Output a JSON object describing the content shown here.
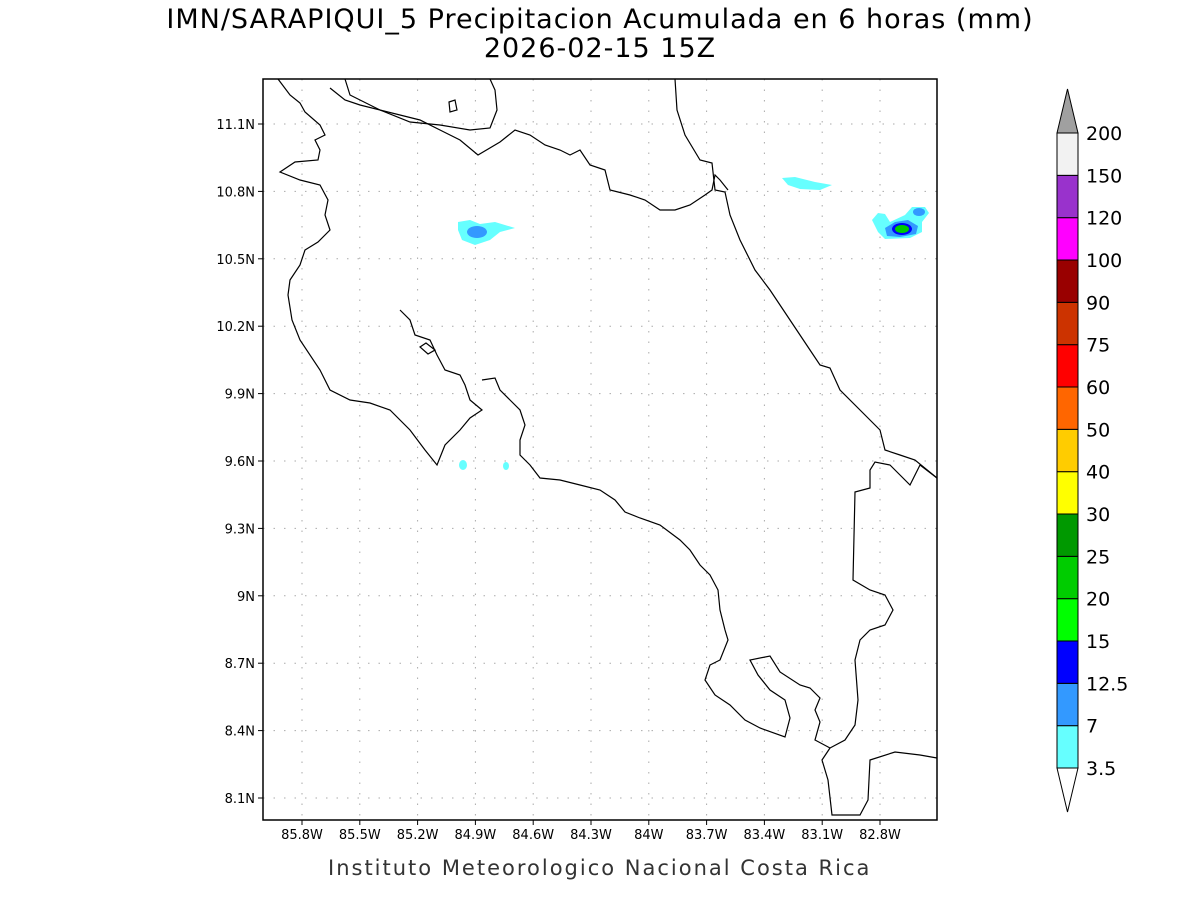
{
  "title": "IMN/SARAPIQUI_5 Precipitacion Acumulada en 6 horas (mm)",
  "subtitle": "2026-02-15 15Z",
  "credit": "Instituto Meteorologico Nacional Costa Rica",
  "map": {
    "lat_ticks": [
      "11.1N",
      "10.8N",
      "10.5N",
      "10.2N",
      "9.9N",
      "9.6N",
      "9.3N",
      "9N",
      "8.7N",
      "8.4N",
      "8.1N"
    ],
    "lat_values": [
      11.1,
      10.8,
      10.5,
      10.2,
      9.9,
      9.6,
      9.3,
      9.0,
      8.7,
      8.4,
      8.1
    ],
    "lon_ticks": [
      "85.8W",
      "85.5W",
      "85.2W",
      "84.9W",
      "84.6W",
      "84.3W",
      "84W",
      "83.7W",
      "83.4W",
      "83.1W",
      "82.8W"
    ],
    "lon_values": [
      -85.8,
      -85.5,
      -85.2,
      -84.9,
      -84.6,
      -84.3,
      -84.0,
      -83.7,
      -83.4,
      -83.1,
      -82.8
    ]
  },
  "colorbar": {
    "levels": [
      "3.5",
      "7",
      "12.5",
      "15",
      "20",
      "25",
      "30",
      "40",
      "50",
      "60",
      "75",
      "90",
      "100",
      "120",
      "150",
      "200"
    ],
    "colors": [
      "#66ffff",
      "#3399ff",
      "#0000ff",
      "#00ff00",
      "#00cc00",
      "#009900",
      "#ffff00",
      "#ffcc00",
      "#ff6600",
      "#ff0000",
      "#cc3300",
      "#990000",
      "#ff00ff",
      "#9932cc",
      "#f2f2f2"
    ],
    "over_color": "#a0a0a0",
    "under_color": "#ffffff"
  }
}
